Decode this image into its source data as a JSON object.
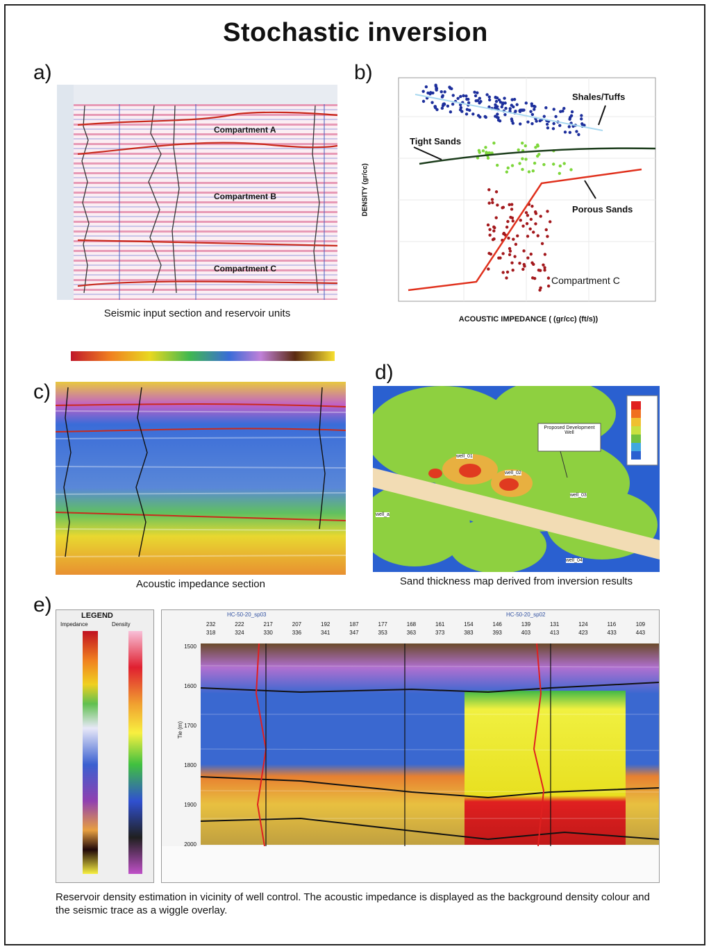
{
  "title": "Stochastic inversion",
  "panels": {
    "a": {
      "label": "a)",
      "caption": "Seismic input section and reservoir units",
      "compartments": [
        "Compartment A",
        "Compartment B",
        "Compartment C"
      ]
    },
    "b": {
      "label": "b)",
      "xlabel": "ACOUSTIC IMPEDANCE ( (gr/cc) (ft/s))",
      "ylabel": "DENSITY (gr/cc)",
      "annotations": [
        "Shales/Tuffs",
        "Tight Sands",
        "Porous Sands",
        "Compartment C"
      ]
    },
    "c": {
      "label": "c)",
      "caption": "Acoustic impedance section"
    },
    "d": {
      "label": "d)",
      "caption": "Sand thickness map derived from inversion results",
      "callout_title": "Proposed Development Well",
      "wells": [
        "well_01",
        "well_02",
        "well_03",
        "well_04",
        "well_a"
      ]
    },
    "e": {
      "label": "e)",
      "legend_title": "LEGEND",
      "legend_col1": "Impedance",
      "legend_col2": "Density",
      "caption": "Reservoir density estimation in vicinity of well control. The acoustic impedance is displayed as the background density colour and the seismic trace as a wiggle overlay.",
      "well_tags": [
        "HC-50-20_sp03",
        "HC-50-20_sp02"
      ],
      "row1": [
        "232",
        "222",
        "217",
        "207",
        "192",
        "187",
        "177",
        "168",
        "161",
        "154",
        "146",
        "139",
        "131",
        "124",
        "116",
        "109"
      ],
      "row2": [
        "318",
        "324",
        "330",
        "336",
        "341",
        "347",
        "353",
        "363",
        "373",
        "383",
        "393",
        "403",
        "413",
        "423",
        "433",
        "443"
      ],
      "depths": [
        "1500",
        "1600",
        "1700",
        "1800",
        "1900",
        "2000"
      ],
      "depth_axis": "Tie (m)"
    }
  },
  "colors": {
    "horizon": "#d12a1a",
    "blue_points": "#1d2f9c",
    "green_points": "#7dd63a",
    "red_points": "#a3181c"
  }
}
